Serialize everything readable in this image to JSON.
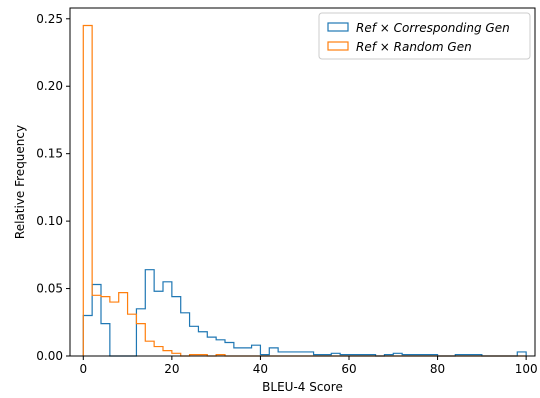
{
  "chart_data": {
    "type": "step-histogram",
    "xlabel": "BLEU-4 Score",
    "ylabel": "Relative Frequency",
    "xlim": [
      -3,
      102
    ],
    "ylim": [
      0,
      0.258
    ],
    "xticks": [
      0,
      20,
      40,
      60,
      80,
      100
    ],
    "yticks": [
      0.0,
      0.05,
      0.1,
      0.15,
      0.2,
      0.25
    ],
    "ytick_labels": [
      "0.00",
      "0.05",
      "0.10",
      "0.15",
      "0.20",
      "0.25"
    ],
    "grid": false,
    "legend_position": "upper right",
    "series": [
      {
        "name": "Ref × Corresponding Gen",
        "color": "#1f77b4",
        "bin_edges": [
          0,
          2,
          4,
          6,
          8,
          10,
          12,
          14,
          16,
          18,
          20,
          22,
          24,
          26,
          28,
          30,
          32,
          34,
          36,
          38,
          40,
          42,
          44,
          46,
          48,
          50,
          52,
          54,
          56,
          58,
          60,
          62,
          64,
          66,
          68,
          70,
          72,
          74,
          76,
          78,
          80,
          82,
          84,
          86,
          88,
          90,
          92,
          94,
          96,
          98,
          100
        ],
        "values": [
          0.03,
          0.053,
          0.024,
          0.0,
          0.0,
          0.0,
          0.035,
          0.064,
          0.048,
          0.055,
          0.044,
          0.032,
          0.022,
          0.018,
          0.014,
          0.012,
          0.01,
          0.006,
          0.006,
          0.008,
          0.001,
          0.006,
          0.003,
          0.003,
          0.003,
          0.003,
          0.001,
          0.001,
          0.002,
          0.001,
          0.001,
          0.001,
          0.001,
          0.0,
          0.001,
          0.002,
          0.001,
          0.001,
          0.001,
          0.001,
          0.0,
          0.0,
          0.001,
          0.001,
          0.001,
          0.0,
          0.0,
          0.0,
          0.0,
          0.003
        ]
      },
      {
        "name": "Ref × Random Gen",
        "color": "#ff7f0e",
        "bin_edges": [
          0,
          2,
          4,
          6,
          8,
          10,
          12,
          14,
          16,
          18,
          20,
          22,
          24,
          26,
          28,
          30,
          32,
          34,
          36,
          38,
          40,
          42,
          44,
          46,
          48,
          50,
          52,
          54,
          56,
          58,
          60,
          62,
          64,
          66,
          68,
          70,
          72,
          74,
          76,
          78,
          80,
          82,
          84,
          86,
          88,
          90,
          92,
          94,
          96,
          98,
          100
        ],
        "values": [
          0.245,
          0.045,
          0.044,
          0.04,
          0.047,
          0.031,
          0.024,
          0.011,
          0.007,
          0.004,
          0.002,
          0.0,
          0.001,
          0.001,
          0.0,
          0.001,
          0.0,
          0.0,
          0.0,
          0.0,
          0.0,
          0.0,
          0.0,
          0.0,
          0.0,
          0.0,
          0.0,
          0.0,
          0.0,
          0.0,
          0.0,
          0.0,
          0.0,
          0.0,
          0.0,
          0.0,
          0.0,
          0.0,
          0.0,
          0.0,
          0.0,
          0.0,
          0.0,
          0.0,
          0.0,
          0.0,
          0.0,
          0.0,
          0.0,
          0.0
        ]
      }
    ]
  }
}
